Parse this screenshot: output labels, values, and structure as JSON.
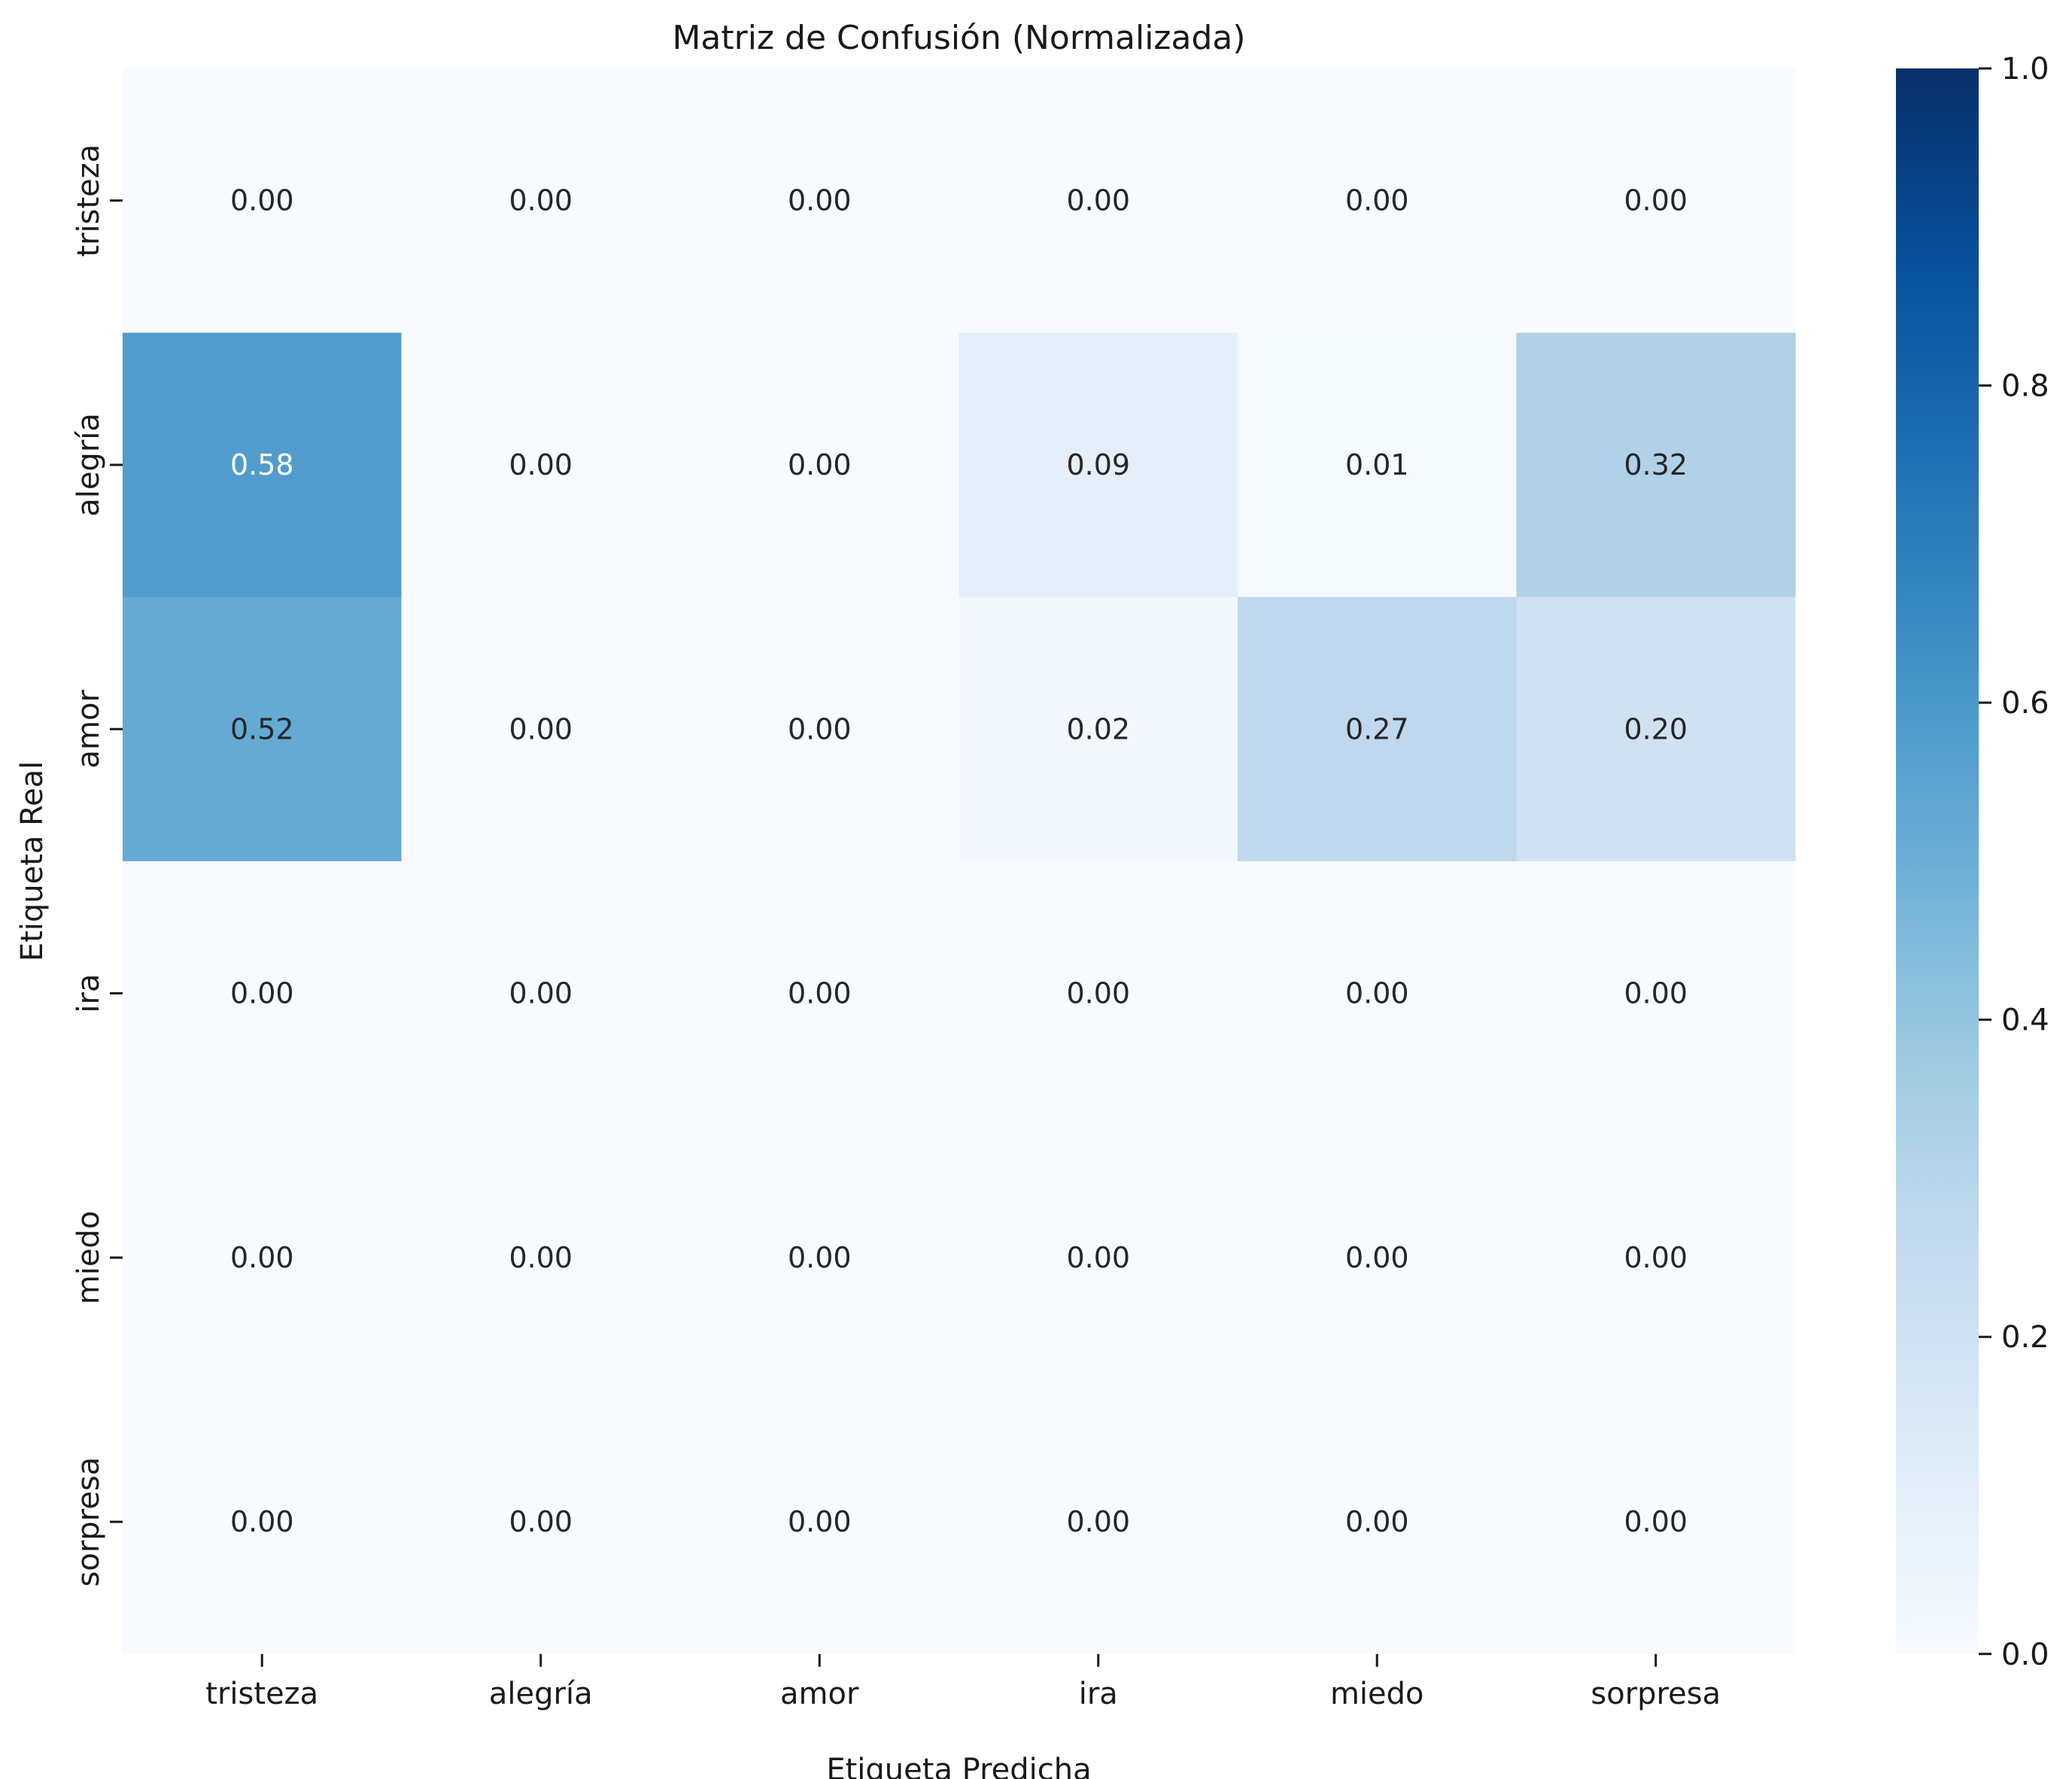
{
  "chart_data": {
    "type": "heatmap",
    "title": "Matriz de Confusión (Normalizada)",
    "xlabel": "Etiqueta Predicha",
    "ylabel": "Etiqueta Real",
    "x_categories": [
      "tristeza",
      "alegría",
      "amor",
      "ira",
      "miedo",
      "sorpresa"
    ],
    "y_categories": [
      "tristeza",
      "alegría",
      "amor",
      "ira",
      "miedo",
      "sorpresa"
    ],
    "values": [
      [
        0.0,
        0.0,
        0.0,
        0.0,
        0.0,
        0.0
      ],
      [
        0.58,
        0.0,
        0.0,
        0.09,
        0.01,
        0.32
      ],
      [
        0.52,
        0.0,
        0.0,
        0.02,
        0.27,
        0.2
      ],
      [
        0.0,
        0.0,
        0.0,
        0.0,
        0.0,
        0.0
      ],
      [
        0.0,
        0.0,
        0.0,
        0.0,
        0.0,
        0.0
      ],
      [
        0.0,
        0.0,
        0.0,
        0.0,
        0.0,
        0.0
      ]
    ],
    "value_format": "0.00",
    "colormap": "Blues",
    "colormap_stops": [
      "#f7fbff",
      "#deebf7",
      "#c6dbef",
      "#9ecae1",
      "#6baed6",
      "#4292c6",
      "#2171b5",
      "#08519c",
      "#08306b"
    ],
    "colorbar": {
      "range": [
        0.0,
        1.0
      ],
      "ticks": [
        0.0,
        0.2,
        0.4,
        0.6,
        0.8,
        1.0
      ],
      "tick_labels": [
        "0.0",
        "0.2",
        "0.4",
        "0.6",
        "0.8",
        "1.0"
      ]
    },
    "annotation_color_dark": "#262626",
    "annotation_color_light": "#ffffff"
  }
}
